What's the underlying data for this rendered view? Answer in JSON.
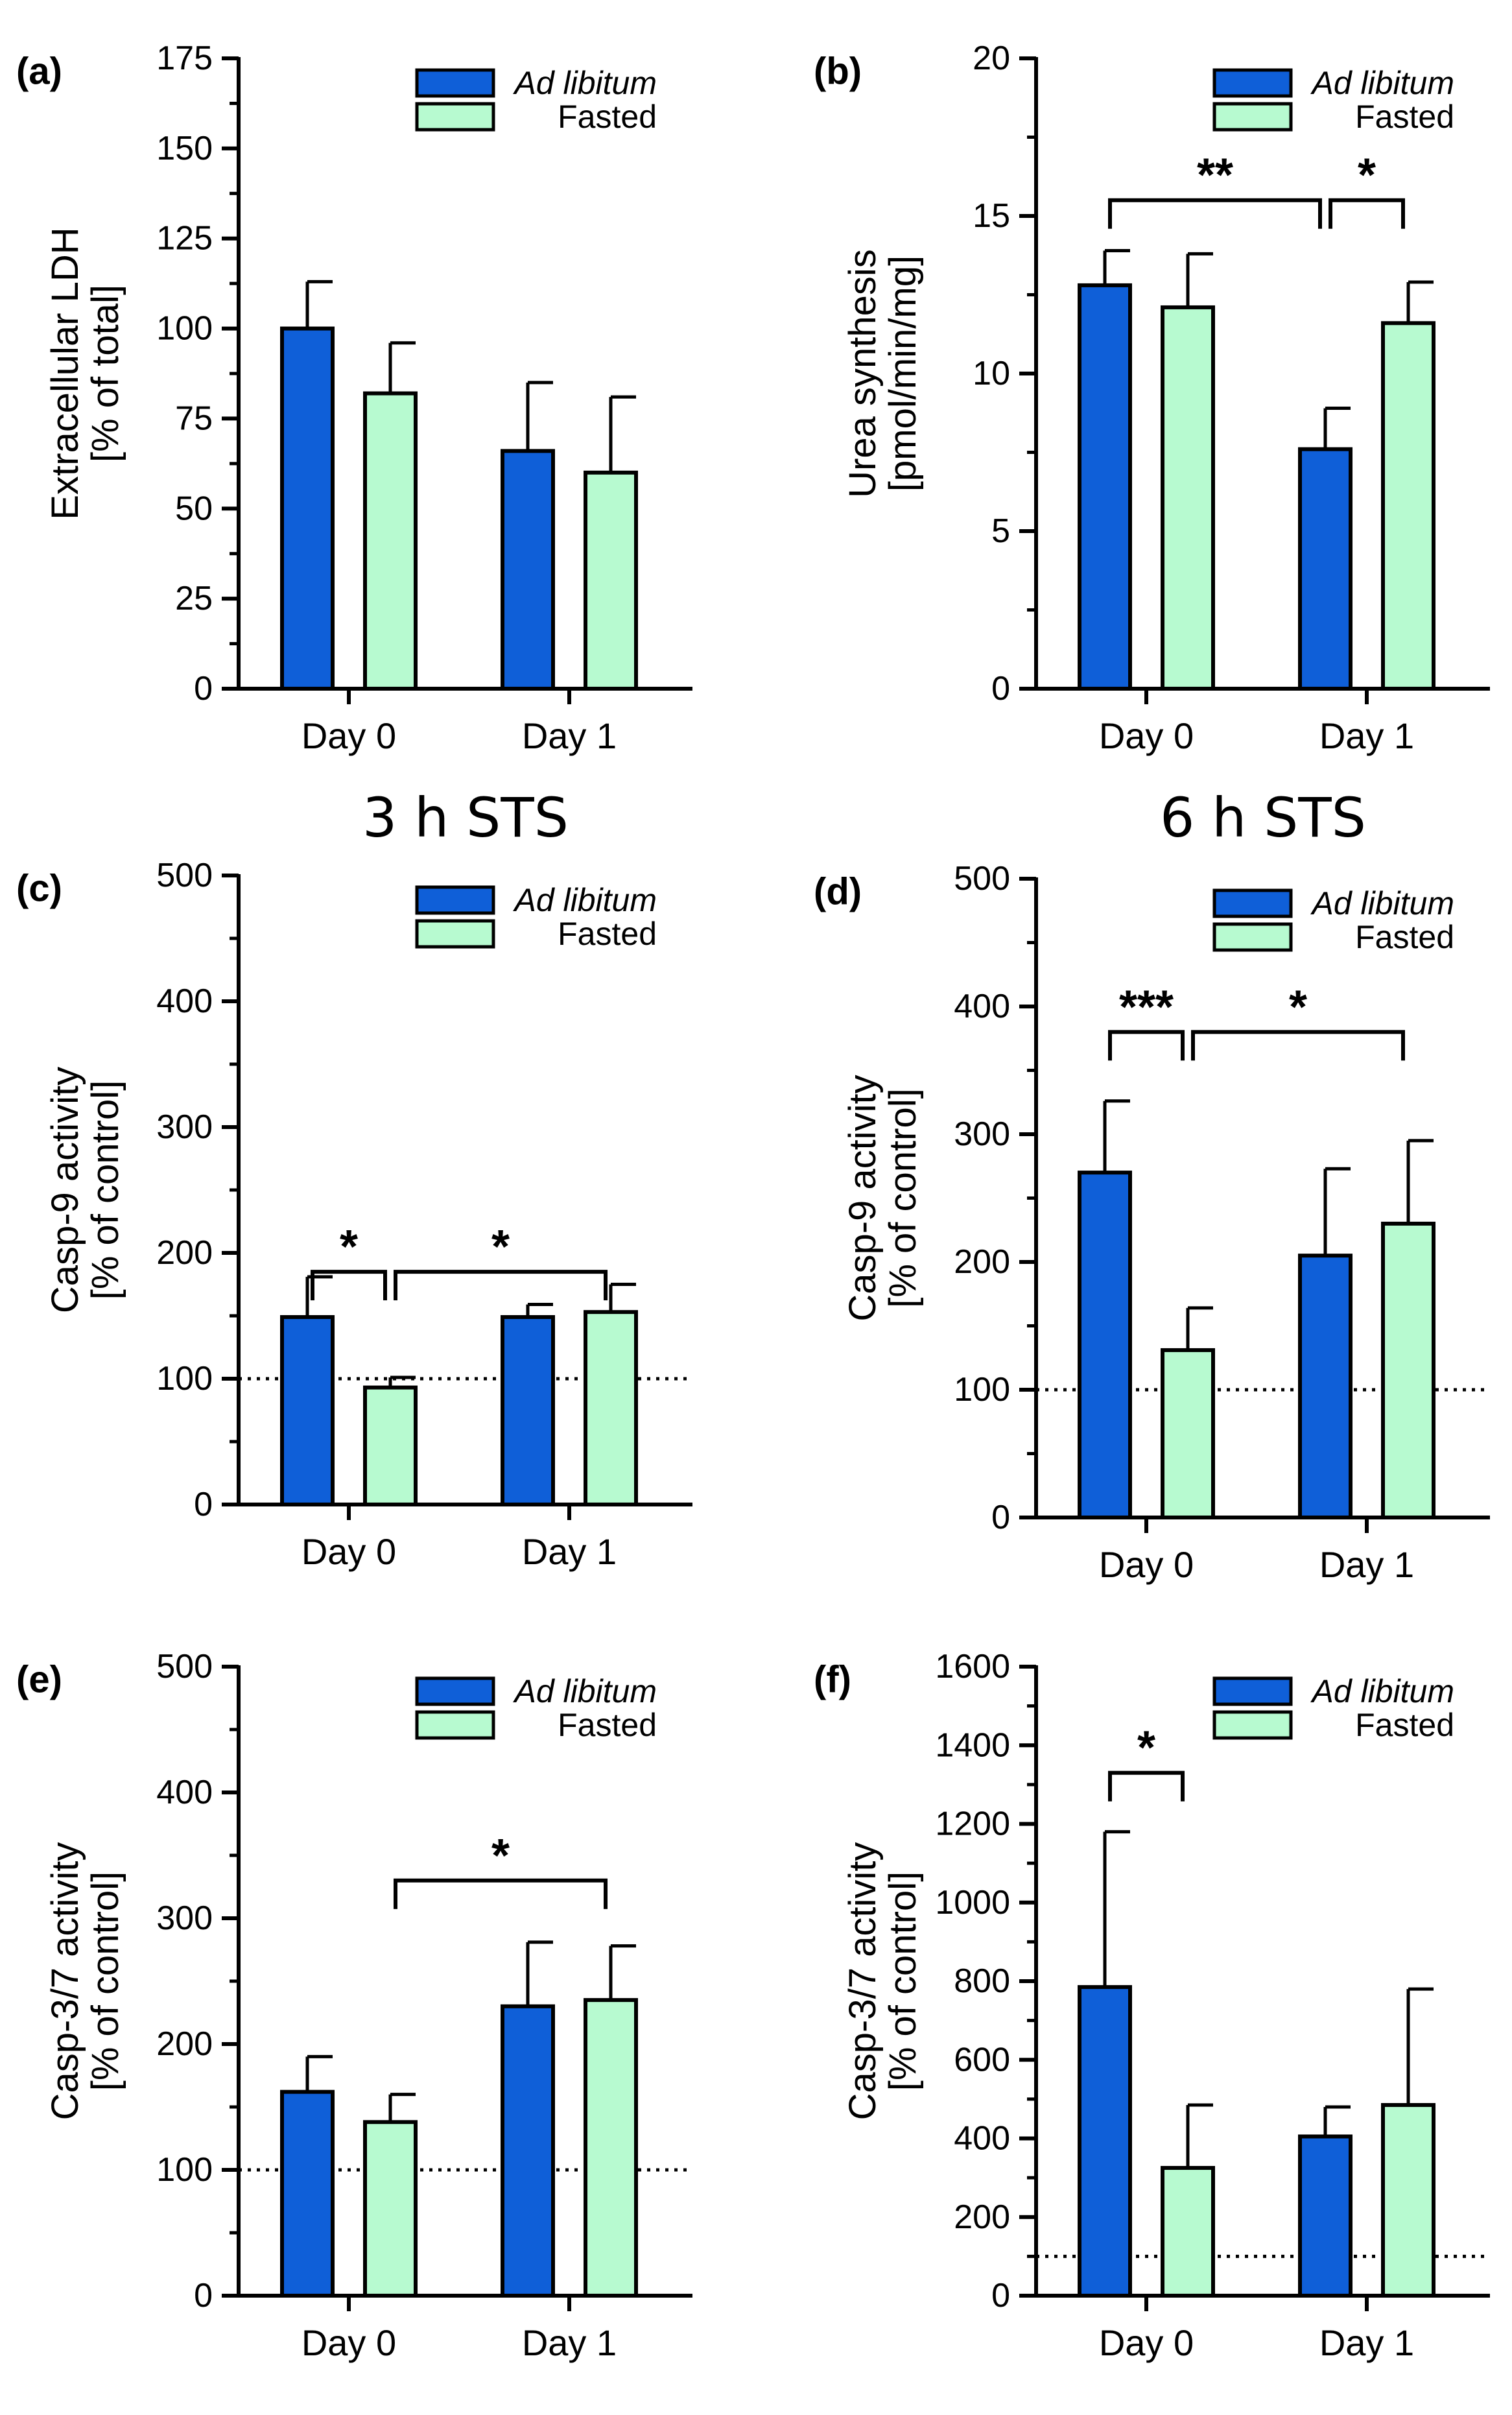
{
  "colors": {
    "ad_libitum": "#0f5fd8",
    "fasted": "#b7fad0",
    "stroke": "#000000"
  },
  "chart_data": [
    {
      "type": "bar",
      "panel_label": "(a)",
      "title": "",
      "ylabel": [
        "Extracellular LDH",
        "[% of total]"
      ],
      "categories": [
        "Day 0",
        "Day 1"
      ],
      "ylim": [
        0,
        175
      ],
      "yticks": [
        0,
        25,
        50,
        75,
        100,
        125,
        150,
        175
      ],
      "series": [
        {
          "name": "Ad libitum",
          "values": [
            100,
            66
          ],
          "errors": [
            13,
            19
          ]
        },
        {
          "name": "Fasted",
          "values": [
            82,
            60
          ],
          "errors": [
            14,
            21
          ]
        }
      ],
      "reference_line": null,
      "significance": []
    },
    {
      "type": "bar",
      "panel_label": "(b)",
      "title": "",
      "ylabel": [
        "Urea synthesis",
        "[pmol/min/mg]"
      ],
      "categories": [
        "Day 0",
        "Day 1"
      ],
      "ylim": [
        0,
        20
      ],
      "yticks": [
        0,
        5,
        10,
        15,
        20
      ],
      "series": [
        {
          "name": "Ad libitum",
          "values": [
            12.8,
            7.6
          ],
          "errors": [
            1.1,
            1.3
          ]
        },
        {
          "name": "Fasted",
          "values": [
            12.1,
            11.6
          ],
          "errors": [
            1.7,
            1.3
          ]
        }
      ],
      "reference_line": null,
      "significance": [
        {
          "label": "**",
          "from": [
            0,
            0
          ],
          "to": [
            1,
            0
          ],
          "level": 15.5
        },
        {
          "label": "*",
          "from": [
            1,
            0
          ],
          "to": [
            1,
            1
          ],
          "level": 15.5
        }
      ]
    },
    {
      "type": "bar",
      "panel_label": "(c)",
      "title": "3 h STS",
      "ylabel": [
        "Casp-9 activity",
        "[% of control]"
      ],
      "categories": [
        "Day 0",
        "Day 1"
      ],
      "ylim": [
        0,
        500
      ],
      "yticks": [
        0,
        100,
        200,
        300,
        400,
        500
      ],
      "series": [
        {
          "name": "Ad libitum",
          "values": [
            149,
            149
          ],
          "errors": [
            32,
            10
          ]
        },
        {
          "name": "Fasted",
          "values": [
            93,
            153
          ],
          "errors": [
            8,
            22
          ]
        }
      ],
      "reference_line": 100,
      "significance": [
        {
          "label": "*",
          "from": [
            0,
            0
          ],
          "to": [
            0,
            1
          ],
          "level": 185
        },
        {
          "label": "*",
          "from": [
            0,
            1
          ],
          "to": [
            1,
            1
          ],
          "level": 185
        }
      ]
    },
    {
      "type": "bar",
      "panel_label": "(d)",
      "title": "6 h STS",
      "ylabel": [
        "Casp-9 activity",
        "[% of control]"
      ],
      "categories": [
        "Day 0",
        "Day 1"
      ],
      "ylim": [
        0,
        500
      ],
      "yticks": [
        0,
        100,
        200,
        300,
        400,
        500
      ],
      "series": [
        {
          "name": "Ad libitum",
          "values": [
            270,
            205
          ],
          "errors": [
            56,
            68
          ]
        },
        {
          "name": "Fasted",
          "values": [
            131,
            230
          ],
          "errors": [
            33,
            65
          ]
        }
      ],
      "reference_line": 100,
      "significance": [
        {
          "label": "***",
          "from": [
            0,
            0
          ],
          "to": [
            0,
            1
          ],
          "level": 380
        },
        {
          "label": "*",
          "from": [
            0,
            1
          ],
          "to": [
            1,
            1
          ],
          "level": 380
        }
      ]
    },
    {
      "type": "bar",
      "panel_label": "(e)",
      "title": "",
      "ylabel": [
        "Casp-3/7 activity",
        "[% of control]"
      ],
      "categories": [
        "Day 0",
        "Day 1"
      ],
      "ylim": [
        0,
        500
      ],
      "yticks": [
        0,
        100,
        200,
        300,
        400,
        500
      ],
      "series": [
        {
          "name": "Ad libitum",
          "values": [
            162,
            230
          ],
          "errors": [
            28,
            51
          ]
        },
        {
          "name": "Fasted",
          "values": [
            138,
            235
          ],
          "errors": [
            22,
            43
          ]
        }
      ],
      "reference_line": 100,
      "significance": [
        {
          "label": "*",
          "from": [
            0,
            1
          ],
          "to": [
            1,
            1
          ],
          "level": 330
        }
      ]
    },
    {
      "type": "bar",
      "panel_label": "(f)",
      "title": "",
      "ylabel": [
        "Casp-3/7 activity",
        "[% of control]"
      ],
      "categories": [
        "Day 0",
        "Day 1"
      ],
      "ylim": [
        0,
        1600
      ],
      "yticks": [
        0,
        200,
        400,
        600,
        800,
        1000,
        1200,
        1400,
        1600
      ],
      "series": [
        {
          "name": "Ad libitum",
          "values": [
            785,
            405
          ],
          "errors": [
            395,
            75
          ]
        },
        {
          "name": "Fasted",
          "values": [
            325,
            485
          ],
          "errors": [
            160,
            295
          ]
        }
      ],
      "reference_line": 100,
      "significance": [
        {
          "label": "*",
          "from": [
            0,
            0
          ],
          "to": [
            0,
            1
          ],
          "level": 1330
        }
      ]
    }
  ]
}
